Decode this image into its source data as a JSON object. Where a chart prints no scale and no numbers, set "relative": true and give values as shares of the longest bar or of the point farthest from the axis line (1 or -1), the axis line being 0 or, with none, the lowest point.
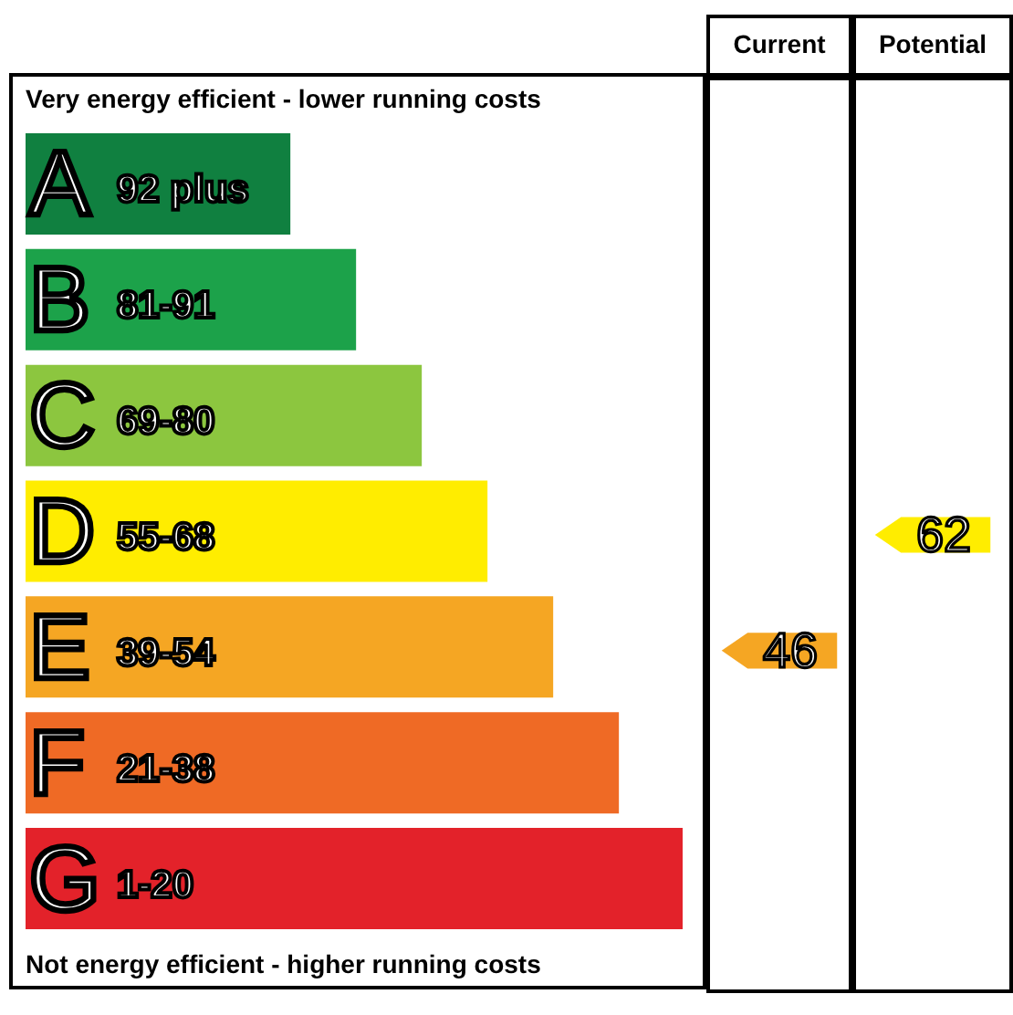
{
  "chart_data": [
    {
      "type": "bar",
      "orientation": "horizontal",
      "relative": true,
      "title": "Very energy efficient - lower running costs",
      "categories": [
        "A",
        "B",
        "C",
        "D",
        "E",
        "F",
        "G"
      ],
      "values": [
        0.403,
        0.503,
        0.603,
        0.703,
        0.803,
        0.903,
        1
      ],
      "colors": [
        "#108040",
        "#1ca24a",
        "#8cc63f",
        "#ffed00",
        "#f5a623",
        "#ef6a25",
        "#e3222a"
      ],
      "annotations": [
        "Not energy efficient - higher running costs",
        {
          "text": "92 plus",
          "y": "A"
        },
        {
          "text": "81-91",
          "y": "B"
        },
        {
          "text": "69-80",
          "y": "C"
        },
        {
          "text": "55-68",
          "y": "D"
        },
        {
          "text": "39-54",
          "y": "E"
        },
        {
          "text": "21-38",
          "y": "F"
        },
        {
          "text": "1-20",
          "y": "G"
        }
      ]
    },
    {
      "type": "other",
      "categories": [
        "Current",
        "Potential"
      ],
      "values": [
        46,
        62
      ],
      "data_labels": true
    }
  ]
}
